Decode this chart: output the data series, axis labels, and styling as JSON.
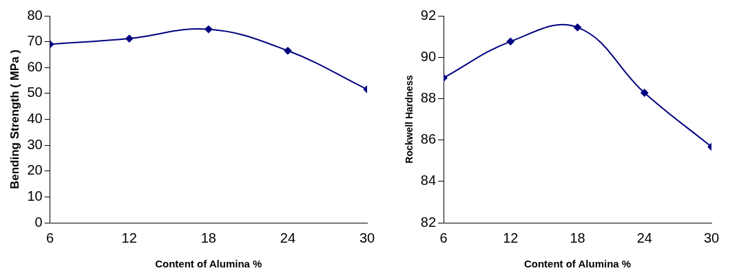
{
  "chart_data": [
    {
      "type": "line",
      "xlabel": "Content of Alumina %",
      "ylabel": "Bending Strength ( MPa )",
      "x": [
        6,
        12,
        18,
        24,
        30
      ],
      "xlim": [
        6,
        30
      ],
      "xticks": [
        6,
        12,
        18,
        24,
        30
      ],
      "ylim": [
        0,
        80
      ],
      "yticks": [
        0,
        10,
        20,
        30,
        40,
        50,
        60,
        70,
        80
      ],
      "grid": false,
      "legend": false,
      "marker": "diamond",
      "line_style": "solid",
      "series": [
        {
          "color": "#000080",
          "values": [
            69,
            71.2,
            74.8,
            66.5,
            51.6
          ]
        }
      ]
    },
    {
      "type": "line",
      "xlabel": "Content of Alumina %",
      "ylabel": "Rockwell Hardness",
      "x": [
        6,
        12,
        18,
        24,
        30
      ],
      "xlim": [
        6,
        30
      ],
      "xticks": [
        6,
        12,
        18,
        24,
        30
      ],
      "ylim": [
        82,
        92
      ],
      "yticks": [
        82,
        84,
        86,
        88,
        90,
        92
      ],
      "grid": false,
      "legend": false,
      "marker": "diamond",
      "line_style": "solid",
      "series": [
        {
          "color": "#000080",
          "values": [
            89.0,
            90.76,
            91.44,
            88.28,
            85.67
          ]
        }
      ]
    }
  ]
}
